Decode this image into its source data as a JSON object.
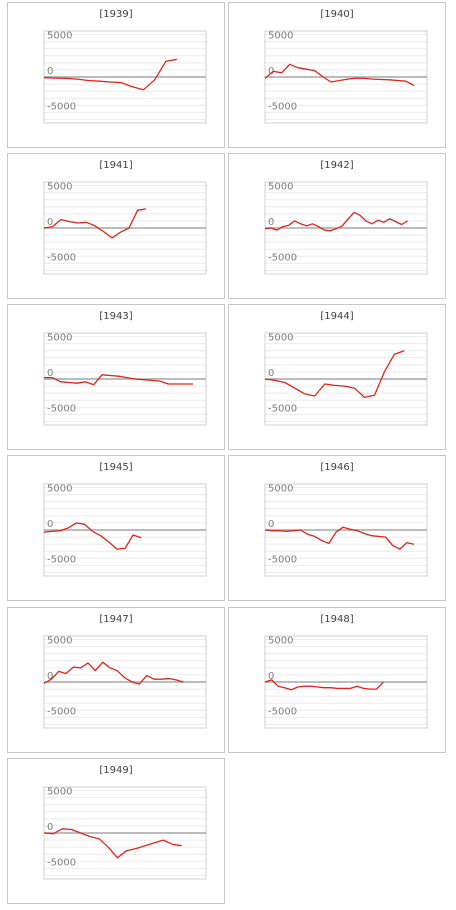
{
  "chart_data": [
    {
      "type": "line",
      "title": "[1939]",
      "ylim": [
        -6500,
        6500
      ],
      "yticks": [
        5000,
        0,
        -5000
      ],
      "y_tick_labels": [
        "5000",
        "0",
        "-5000"
      ],
      "grid": true,
      "x": [
        1,
        2,
        3,
        4,
        5,
        6,
        7,
        8,
        9,
        10,
        11,
        12,
        13
      ],
      "series": [
        {
          "values": [
            -100,
            -150,
            -200,
            -300,
            -500,
            -600,
            -700,
            -800,
            -1400,
            -1800,
            -400,
            2200,
            2500
          ]
        }
      ]
    },
    {
      "type": "line",
      "title": "[1940]",
      "ylim": [
        -6500,
        6500
      ],
      "yticks": [
        5000,
        0,
        -5000
      ],
      "y_tick_labels": [
        "5000",
        "0",
        "-5000"
      ],
      "grid": true,
      "x": [
        1,
        2,
        3,
        4,
        5,
        6,
        7,
        8,
        9,
        10,
        11,
        12,
        13,
        14,
        15,
        16,
        17,
        18,
        19
      ],
      "series": [
        {
          "values": [
            -200,
            800,
            600,
            1800,
            1300,
            1100,
            900,
            0,
            -700,
            -500,
            -300,
            -150,
            -200,
            -300,
            -350,
            -400,
            -500,
            -600,
            -1200
          ]
        }
      ]
    },
    {
      "type": "line",
      "title": "[1941]",
      "ylim": [
        -6500,
        6500
      ],
      "yticks": [
        5000,
        0,
        -5000
      ],
      "y_tick_labels": [
        "5000",
        "0",
        "-5000"
      ],
      "grid": true,
      "x": [
        1,
        2,
        3,
        4,
        5,
        6,
        7,
        8,
        9,
        10,
        11,
        12,
        13
      ],
      "series": [
        {
          "values": [
            0,
            200,
            1200,
            900,
            700,
            800,
            300,
            -500,
            -1400,
            -600,
            0,
            2500,
            2700
          ]
        }
      ]
    },
    {
      "type": "line",
      "title": "[1942]",
      "ylim": [
        -6500,
        6500
      ],
      "yticks": [
        5000,
        0,
        -5000
      ],
      "y_tick_labels": [
        "5000",
        "0",
        "-5000"
      ],
      "grid": true,
      "x": [
        1,
        2,
        3,
        4,
        5,
        6,
        7,
        8,
        9,
        10,
        11,
        12,
        13,
        14,
        15,
        16,
        17,
        18,
        19,
        20,
        21,
        22,
        23,
        24,
        25
      ],
      "series": [
        {
          "values": [
            -100,
            0,
            -300,
            200,
            400,
            1000,
            600,
            300,
            600,
            200,
            -300,
            -400,
            -100,
            300,
            1300,
            2200,
            1800,
            1000,
            600,
            1100,
            800,
            1300,
            900,
            500,
            1000
          ]
        }
      ]
    },
    {
      "type": "line",
      "title": "[1943]",
      "ylim": [
        -6500,
        6500
      ],
      "yticks": [
        5000,
        0,
        -5000
      ],
      "y_tick_labels": [
        "5000",
        "0",
        "-5000"
      ],
      "grid": true,
      "x": [
        1,
        2,
        3,
        4,
        5,
        6,
        7,
        8,
        9,
        10,
        11,
        12,
        13,
        14,
        15,
        16,
        17,
        18,
        19
      ],
      "series": [
        {
          "values": [
            200,
            200,
            -400,
            -500,
            -600,
            -400,
            -800,
            600,
            500,
            400,
            200,
            0,
            -100,
            -200,
            -300,
            -700,
            -700,
            -700,
            -700
          ]
        }
      ]
    },
    {
      "type": "line",
      "title": "[1944]",
      "ylim": [
        -6500,
        6500
      ],
      "yticks": [
        5000,
        0,
        -5000
      ],
      "y_tick_labels": [
        "5000",
        "0",
        "-5000"
      ],
      "grid": true,
      "x": [
        1,
        2,
        3,
        4,
        5,
        6,
        7,
        8,
        9,
        10,
        11,
        12,
        13,
        14,
        15
      ],
      "series": [
        {
          "values": [
            0,
            -200,
            -500,
            -1300,
            -2100,
            -2400,
            -700,
            -900,
            -1000,
            -1300,
            -2600,
            -2300,
            1000,
            3500,
            4000
          ]
        }
      ]
    },
    {
      "type": "line",
      "title": "[1945]",
      "ylim": [
        -6500,
        6500
      ],
      "yticks": [
        5000,
        0,
        -5000
      ],
      "y_tick_labels": [
        "5000",
        "0",
        "-5000"
      ],
      "grid": true,
      "x": [
        1,
        2,
        3,
        4,
        5,
        6,
        7,
        8,
        9,
        10,
        11,
        12,
        13
      ],
      "series": [
        {
          "values": [
            -300,
            -200,
            -100,
            300,
            1000,
            800,
            -200,
            -800,
            -1700,
            -2700,
            -2600,
            -700,
            -1100
          ]
        }
      ]
    },
    {
      "type": "line",
      "title": "[1946]",
      "ylim": [
        -6500,
        6500
      ],
      "yticks": [
        5000,
        0,
        -5000
      ],
      "y_tick_labels": [
        "5000",
        "0",
        "-5000"
      ],
      "grid": true,
      "x": [
        1,
        2,
        3,
        4,
        5,
        6,
        7,
        8,
        9,
        10,
        11,
        12,
        13,
        14,
        15,
        16,
        17,
        18,
        19,
        20,
        21,
        22
      ],
      "series": [
        {
          "values": [
            0,
            -100,
            -100,
            -200,
            -100,
            0,
            -600,
            -900,
            -1500,
            -1900,
            -300,
            400,
            100,
            -100,
            -500,
            -800,
            -900,
            -1000,
            -2200,
            -2700,
            -1800,
            -2000
          ]
        }
      ]
    },
    {
      "type": "line",
      "title": "[1947]",
      "ylim": [
        -6500,
        6500
      ],
      "yticks": [
        5000,
        0,
        -5000
      ],
      "y_tick_labels": [
        "5000",
        "0",
        "-5000"
      ],
      "grid": true,
      "x": [
        1,
        2,
        3,
        4,
        5,
        6,
        7,
        8,
        9,
        10,
        11,
        12,
        13,
        14,
        15,
        16,
        17,
        18,
        19,
        20
      ],
      "series": [
        {
          "values": [
            -200,
            400,
            1500,
            1200,
            2100,
            2000,
            2700,
            1600,
            2800,
            2000,
            1600,
            600,
            0,
            -300,
            900,
            400,
            400,
            500,
            300,
            0
          ]
        }
      ]
    },
    {
      "type": "line",
      "title": "[1948]",
      "ylim": [
        -6500,
        6500
      ],
      "yticks": [
        5000,
        0,
        -5000
      ],
      "y_tick_labels": [
        "5000",
        "0",
        "-5000"
      ],
      "grid": true,
      "x": [
        1,
        2,
        3,
        4,
        5,
        6,
        7,
        8,
        9,
        10,
        11,
        12,
        13,
        14,
        15,
        16,
        17,
        18,
        19
      ],
      "series": [
        {
          "values": [
            0,
            300,
            -600,
            -800,
            -1100,
            -700,
            -600,
            -600,
            -700,
            -800,
            -800,
            -900,
            -900,
            -900,
            -600,
            -900,
            -1000,
            -1000,
            0
          ]
        }
      ]
    },
    {
      "type": "line",
      "title": "[1949]",
      "ylim": [
        -6500,
        6500
      ],
      "yticks": [
        5000,
        0,
        -5000
      ],
      "y_tick_labels": [
        "5000",
        "0",
        "-5000"
      ],
      "grid": true,
      "x": [
        1,
        2,
        3,
        4,
        5,
        6,
        7,
        8,
        9,
        10,
        11,
        12,
        13,
        14,
        15,
        16
      ],
      "series": [
        {
          "values": [
            0,
            -100,
            600,
            500,
            0,
            -500,
            -800,
            -2000,
            -3500,
            -2500,
            -2200,
            -1800,
            -1400,
            -1000,
            -1600,
            -1800
          ]
        }
      ]
    }
  ]
}
